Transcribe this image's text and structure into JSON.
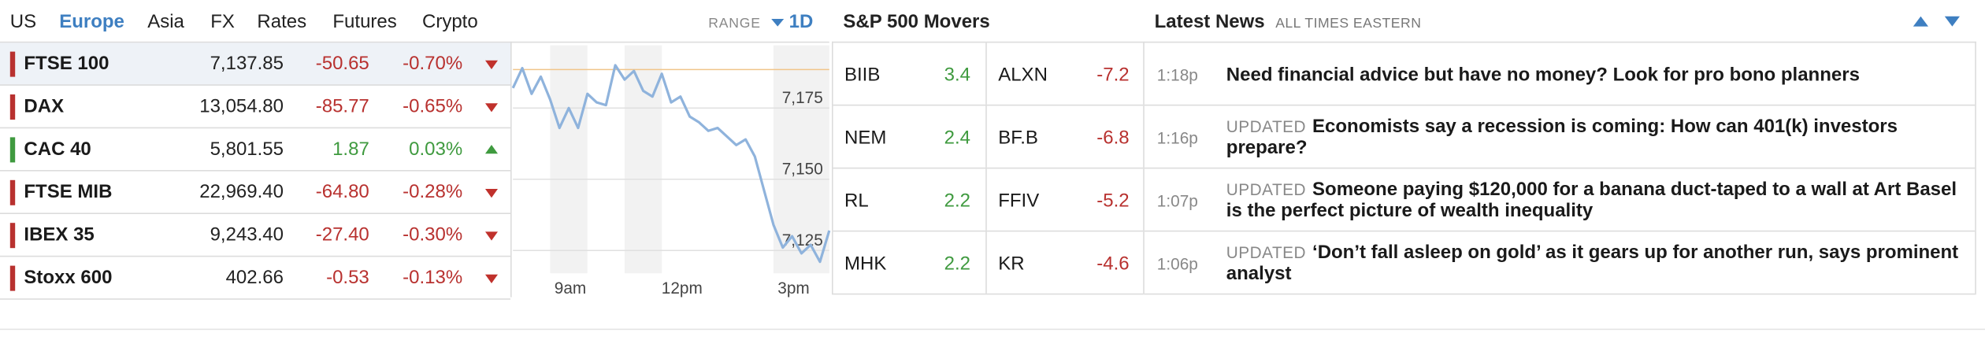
{
  "markets": {
    "tabs": [
      "US",
      "Europe",
      "Asia",
      "FX",
      "Rates",
      "Futures",
      "Crypto"
    ],
    "active_tab": "Europe",
    "range_label": "RANGE",
    "range_value": "1D",
    "indices": [
      {
        "name": "FTSE 100",
        "last": "7,137.85",
        "change": "-50.65",
        "pct": "-0.70%",
        "direction": "down"
      },
      {
        "name": "DAX",
        "last": "13,054.80",
        "change": "-85.77",
        "pct": "-0.65%",
        "direction": "down"
      },
      {
        "name": "CAC 40",
        "last": "5,801.55",
        "change": "1.87",
        "pct": "0.03%",
        "direction": "up"
      },
      {
        "name": "FTSE MIB",
        "last": "22,969.40",
        "change": "-64.80",
        "pct": "-0.28%",
        "direction": "down"
      },
      {
        "name": "IBEX 35",
        "last": "9,243.40",
        "change": "-27.40",
        "pct": "-0.30%",
        "direction": "down"
      },
      {
        "name": "Stoxx 600",
        "last": "402.66",
        "change": "-0.53",
        "pct": "-0.13%",
        "direction": "down"
      }
    ]
  },
  "chart_data": {
    "type": "line",
    "title": "",
    "series_for": "FTSE 100",
    "x_ticks": [
      "9am",
      "12pm",
      "3pm"
    ],
    "y_ticks": [
      7175,
      7150,
      7125
    ],
    "ylim": [
      7117,
      7197
    ],
    "previous_close": 7188.5,
    "x": [
      "8:00",
      "8:15",
      "8:30",
      "8:45",
      "9:00",
      "9:15",
      "9:30",
      "9:45",
      "10:00",
      "10:15",
      "10:30",
      "10:45",
      "11:00",
      "11:15",
      "11:30",
      "11:45",
      "12:00",
      "12:15",
      "12:30",
      "12:45",
      "13:00",
      "13:15",
      "13:30",
      "13:45",
      "14:00",
      "14:15",
      "14:30",
      "14:45",
      "15:00",
      "15:15",
      "15:30",
      "15:45",
      "16:00",
      "16:15",
      "16:30"
    ],
    "values": [
      7182,
      7189,
      7180,
      7186,
      7178,
      7168,
      7175,
      7168,
      7180,
      7177,
      7176,
      7190,
      7185,
      7188,
      7181,
      7179,
      7187,
      7177,
      7179,
      7172,
      7170,
      7167,
      7168,
      7165,
      7162,
      7164,
      7158,
      7146,
      7134,
      7126,
      7130,
      7124,
      7127,
      7121,
      7132
    ],
    "grid": true,
    "legend": "none"
  },
  "movers": {
    "title": "S&P 500 Movers",
    "rows": [
      {
        "gainer": "BIIB",
        "gain": "3.4",
        "loser": "ALXN",
        "loss": "-7.2"
      },
      {
        "gainer": "NEM",
        "gain": "2.4",
        "loser": "BF.B",
        "loss": "-6.8"
      },
      {
        "gainer": "RL",
        "gain": "2.2",
        "loser": "FFIV",
        "loss": "-5.2"
      },
      {
        "gainer": "MHK",
        "gain": "2.2",
        "loser": "KR",
        "loss": "-4.6"
      }
    ]
  },
  "news": {
    "title": "Latest News",
    "timezone": "ALL TIMES EASTERN",
    "items": [
      {
        "time": "1:18p",
        "tag": "",
        "headline": "Need financial advice but have no money? Look for pro bono planners"
      },
      {
        "time": "1:16p",
        "tag": "UPDATED",
        "headline": "Economists say a recession is coming: How can 401(k) investors prepare?"
      },
      {
        "time": "1:07p",
        "tag": "UPDATED",
        "headline": "Someone paying $120,000 for a banana duct-taped to a wall at Art Basel is the perfect picture of wealth inequality"
      },
      {
        "time": "1:06p",
        "tag": "UPDATED",
        "headline": "‘Don’t fall asleep on gold’ as it gears up for another run, says prominent analyst"
      }
    ]
  },
  "colors": {
    "accent": "#3e7fc1",
    "negative": "#b8312f",
    "positive": "#3f9a3f",
    "line": "#8fb3dc",
    "prev_close_line": "#f0c58a"
  }
}
